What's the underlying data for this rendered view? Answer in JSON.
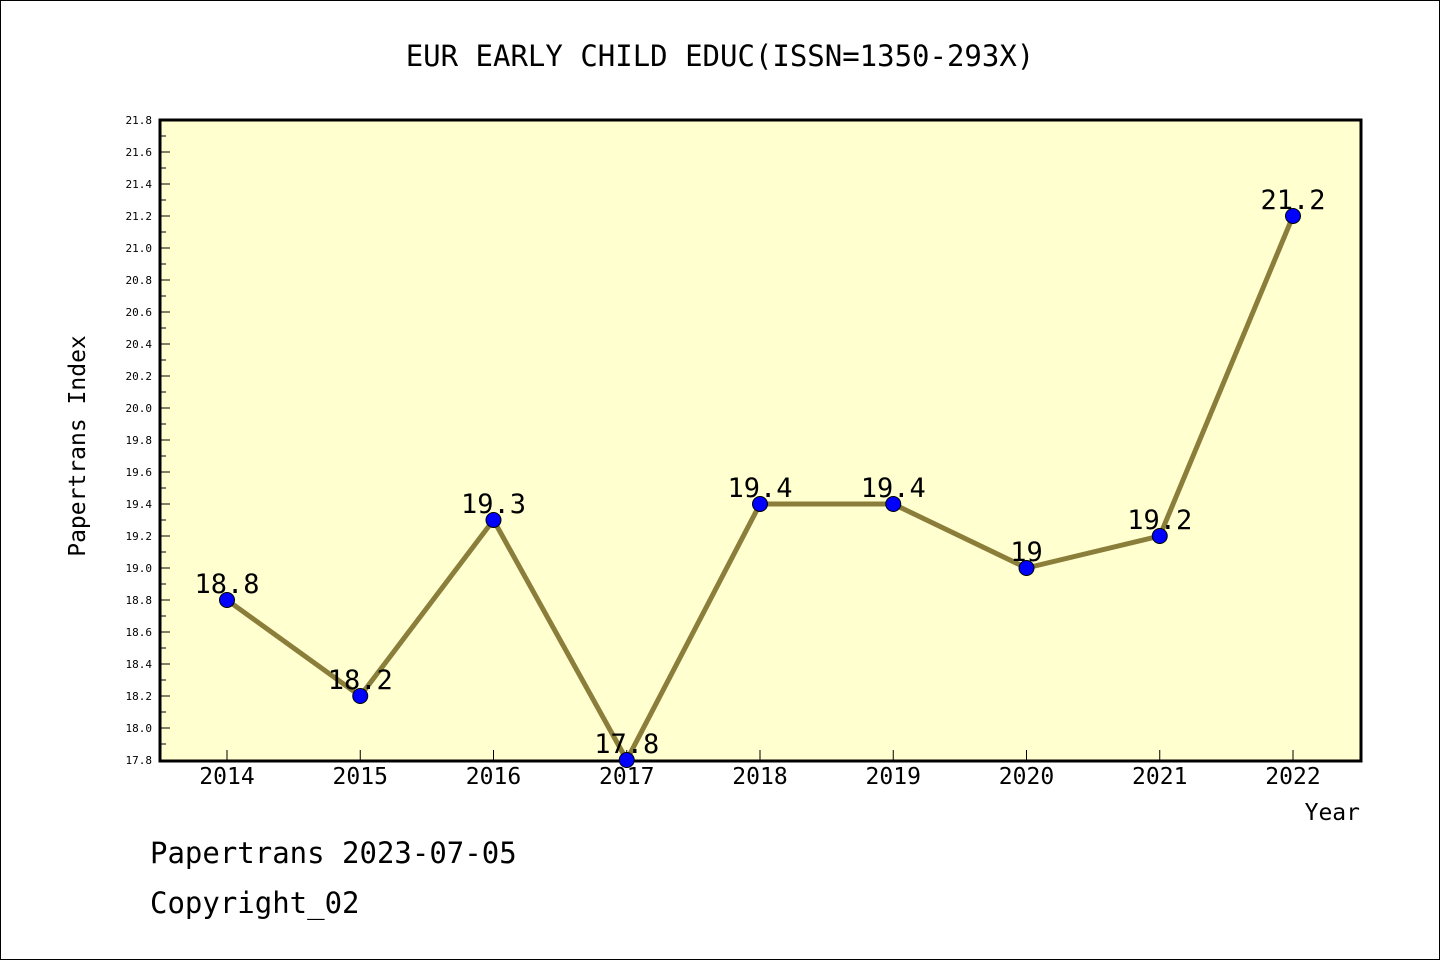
{
  "chart_data": {
    "type": "line",
    "title": "EUR EARLY CHILD EDUC(ISSN=1350-293X)",
    "xlabel": "Year",
    "ylabel": "Papertrans Index",
    "categories": [
      "2014",
      "2015",
      "2016",
      "2017",
      "2018",
      "2019",
      "2020",
      "2021",
      "2022"
    ],
    "series": [
      {
        "values": [
          18.8,
          18.2,
          19.3,
          17.8,
          19.4,
          19.4,
          19.0,
          19.2,
          21.2
        ],
        "point_labels": [
          "18.8",
          "18.2",
          "19.3",
          "17.8",
          "19.4",
          "19.4",
          "19",
          "19.2",
          "21.2"
        ]
      }
    ],
    "ylim": [
      17.8,
      21.8
    ],
    "yticks": [
      "17.8",
      "18.0",
      "18.2",
      "18.4",
      "18.6",
      "18.8",
      "19.0",
      "19.2",
      "19.4",
      "19.6",
      "19.8",
      "20.0",
      "20.2",
      "20.4",
      "20.6",
      "20.8",
      "21.0",
      "21.2",
      "21.4",
      "21.6",
      "21.8"
    ],
    "grid": false,
    "legend": "none",
    "colors": {
      "plot_background": "#ffffd0",
      "line": "#8b7d3a",
      "marker": "#0000ff"
    }
  },
  "footer": {
    "line1": "Papertrans 2023-07-05",
    "line2": "Copyright_02"
  }
}
